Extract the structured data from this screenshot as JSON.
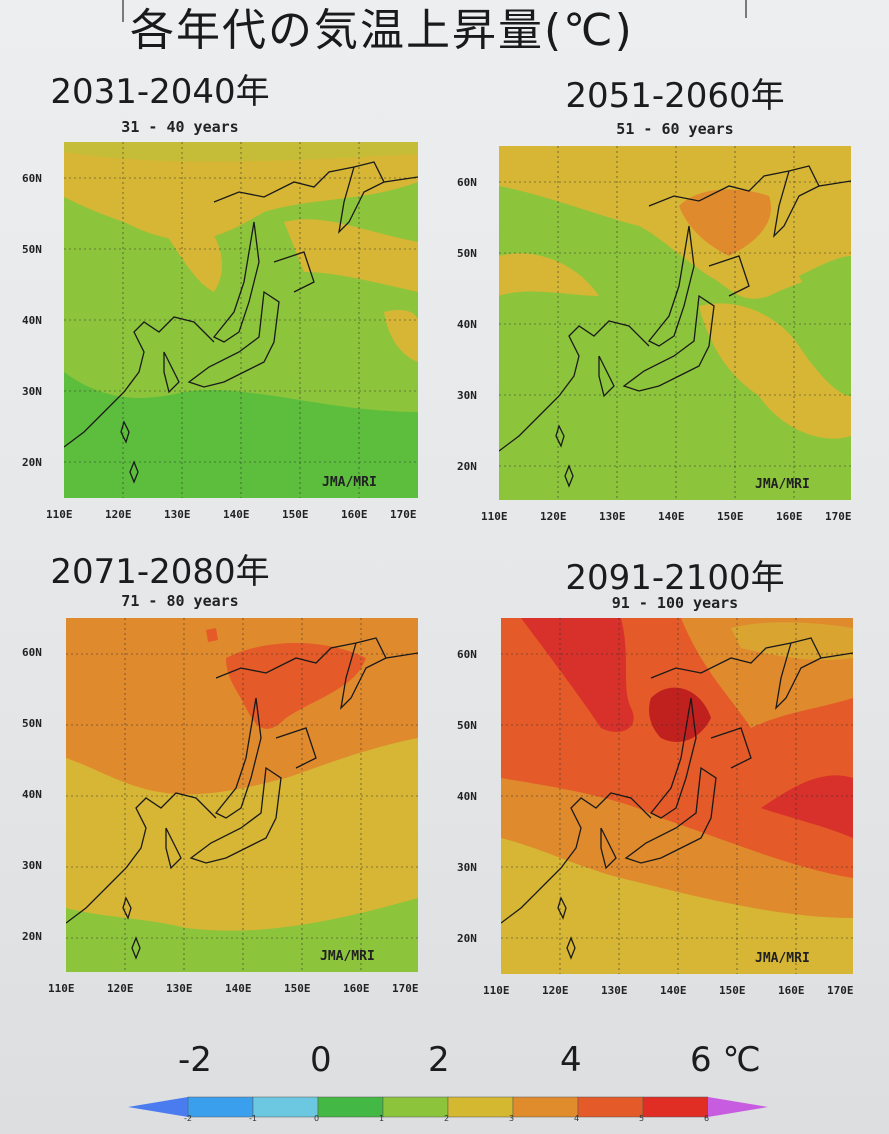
{
  "title": "各年代の気温上昇量(℃)",
  "panels": [
    {
      "decade": "2031-2040年",
      "subtitle": "31 - 40 years",
      "credit": "JMA/MRI",
      "lat_labels": [
        "60N",
        "50N",
        "40N",
        "30N",
        "20N"
      ],
      "lon_labels": [
        "110E",
        "120E",
        "130E",
        "140E",
        "150E",
        "160E",
        "170E"
      ],
      "warming_level": "1-3"
    },
    {
      "decade": "2051-2060年",
      "subtitle": "51 - 60 years",
      "credit": "JMA/MRI",
      "lat_labels": [
        "60N",
        "50N",
        "40N",
        "30N",
        "20N"
      ],
      "lon_labels": [
        "110E",
        "120E",
        "130E",
        "140E",
        "150E",
        "160E",
        "170E"
      ],
      "warming_level": "1-4"
    },
    {
      "decade": "2071-2080年",
      "subtitle": "71 - 80 years",
      "credit": "JMA/MRI",
      "lat_labels": [
        "60N",
        "50N",
        "40N",
        "30N",
        "20N"
      ],
      "lon_labels": [
        "110E",
        "120E",
        "130E",
        "140E",
        "150E",
        "160E",
        "170E"
      ],
      "warming_level": "1-5"
    },
    {
      "decade": "2091-2100年",
      "subtitle": "91 - 100 years",
      "credit": "JMA/MRI",
      "lat_labels": [
        "60N",
        "50N",
        "40N",
        "30N",
        "20N"
      ],
      "lon_labels": [
        "110E",
        "120E",
        "130E",
        "140E",
        "150E",
        "160E",
        "170E"
      ],
      "warming_level": "2-6"
    }
  ],
  "colorbar": {
    "labels": [
      "-2",
      "0",
      "2",
      "4",
      "6 ℃"
    ],
    "levels": [
      -3,
      -2,
      -1,
      0,
      1,
      2,
      3,
      4,
      5,
      6
    ],
    "colors": [
      "#4a7cf0",
      "#3aa0ee",
      "#6cc8e0",
      "#44b844",
      "#8cc43c",
      "#d4b830",
      "#e08c2c",
      "#e45a28",
      "#e02e24",
      "#c85ce0"
    ]
  },
  "palette": {
    "green": "#5cbe3c",
    "light_green": "#8cc43c",
    "yellow": "#d6b634",
    "orange": "#e08a2e",
    "red_orange": "#e4542a",
    "red": "#d8302a",
    "dark_red": "#c0201e"
  }
}
